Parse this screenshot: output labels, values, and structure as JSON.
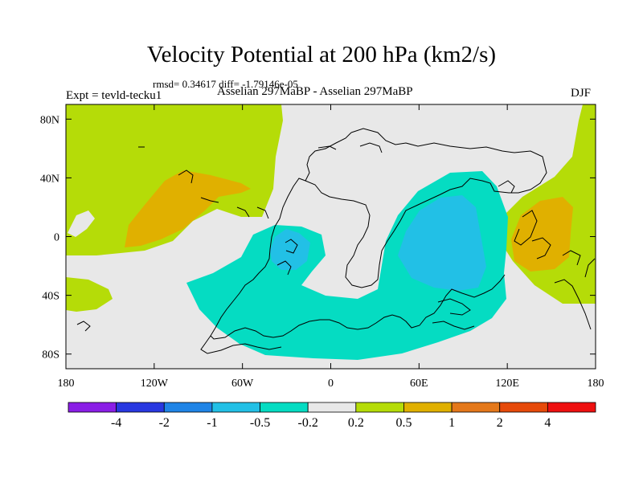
{
  "header": {
    "title": "Velocity Potential at 200 hPa (km2/s)",
    "stats": "rmsd= 0.34617 diff= -1.79146e-05",
    "expt": "Expt = tevld-tecku1",
    "runs": "Asselian 297MaBP - Asselian 297MaBP",
    "season": "DJF"
  },
  "chart_data": {
    "type": "contour",
    "title": "Velocity Potential at 200 hPa (km2/s)",
    "xlabel": "",
    "ylabel": "",
    "xlim": [
      -180,
      180
    ],
    "ylim": [
      -90,
      90
    ],
    "x_ticks": [
      {
        "value": -180,
        "label": "180"
      },
      {
        "value": -120,
        "label": "120W"
      },
      {
        "value": -60,
        "label": "60W"
      },
      {
        "value": 0,
        "label": "0"
      },
      {
        "value": 60,
        "label": "60E"
      },
      {
        "value": 120,
        "label": "120E"
      },
      {
        "value": 180,
        "label": "180"
      }
    ],
    "y_ticks": [
      {
        "value": 80,
        "label": "80N"
      },
      {
        "value": 40,
        "label": "40N"
      },
      {
        "value": 0,
        "label": "0"
      },
      {
        "value": -40,
        "label": "40S"
      },
      {
        "value": -80,
        "label": "80S"
      }
    ],
    "colorbar": {
      "levels": [
        -4,
        -2,
        -1,
        -0.5,
        -0.2,
        0.2,
        0.5,
        1,
        2,
        4
      ],
      "level_labels": [
        "-4",
        "-2",
        "-1",
        "-0.5",
        "-0.2",
        "0.2",
        "0.5",
        "1",
        "2",
        "4"
      ],
      "colors": [
        "#8a1ee6",
        "#2838e0",
        "#1f84e6",
        "#22c0e6",
        "#05dcc2",
        "#e8e8e8",
        "#b5dc08",
        "#e0b000",
        "#e4781a",
        "#e64a0a",
        "#ee1010"
      ]
    },
    "regions": [
      {
        "name": "north-pacific-positive",
        "level": "0.2 to 0.5",
        "color": "#b5dc08"
      },
      {
        "name": "north-pacific-core",
        "level": "0.5 to 1",
        "color": "#e0b000"
      },
      {
        "name": "south-pacific-positive",
        "level": "0.2 to 0.5",
        "color": "#b5dc08"
      },
      {
        "name": "west-pacific-positive",
        "level": "0.2 to 0.5",
        "color": "#b5dc08"
      },
      {
        "name": "west-pacific-core",
        "level": "0.5 to 1",
        "color": "#e0b000"
      },
      {
        "name": "southern-negative-band",
        "level": "-0.5 to -0.2",
        "color": "#05dcc2"
      },
      {
        "name": "atlantic-negative-core",
        "level": "-1 to -0.5",
        "color": "#22c0e6"
      },
      {
        "name": "indian-negative-core",
        "level": "-1 to -0.5",
        "color": "#22c0e6"
      }
    ]
  }
}
